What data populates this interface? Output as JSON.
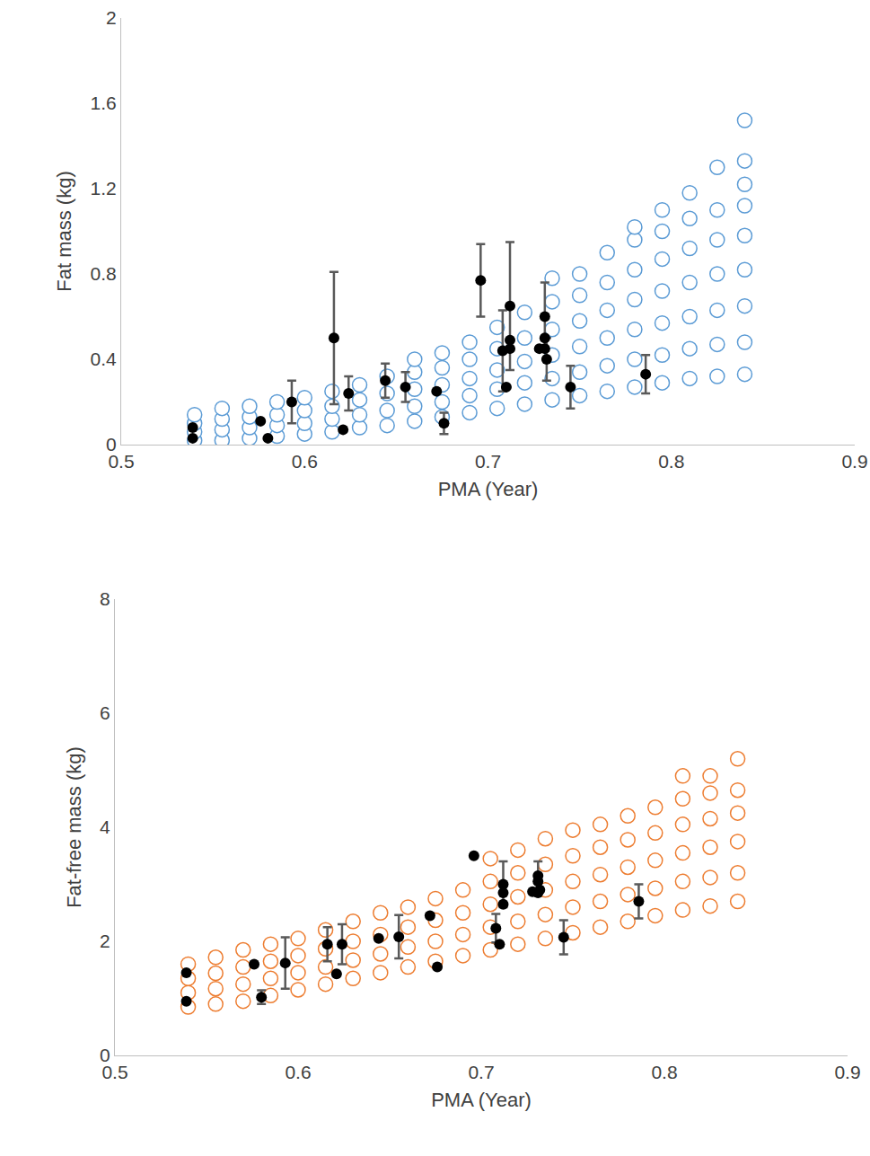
{
  "chart_data": [
    {
      "type": "scatter",
      "x_label": "PMA (Year)",
      "y_label": "Fat mass (kg)",
      "xlim": [
        0.5,
        0.9
      ],
      "xticks": [
        0.5,
        0.6,
        0.7,
        0.8,
        0.9
      ],
      "ylim": [
        0,
        2
      ],
      "yticks": [
        0,
        0.4,
        0.8,
        1.2,
        1.6,
        2
      ],
      "grid": false,
      "series": [
        {
          "color": "#5b9bd5",
          "marker": "open_circle",
          "x": [
            0.54,
            0.54,
            0.54,
            0.54,
            0.555,
            0.555,
            0.555,
            0.555,
            0.57,
            0.57,
            0.57,
            0.57,
            0.585,
            0.585,
            0.585,
            0.585,
            0.6,
            0.6,
            0.6,
            0.6,
            0.615,
            0.615,
            0.615,
            0.615,
            0.63,
            0.63,
            0.63,
            0.63,
            0.645,
            0.645,
            0.645,
            0.645,
            0.66,
            0.66,
            0.66,
            0.66,
            0.66,
            0.675,
            0.675,
            0.675,
            0.675,
            0.675,
            0.69,
            0.69,
            0.69,
            0.69,
            0.69,
            0.705,
            0.705,
            0.705,
            0.705,
            0.705,
            0.72,
            0.72,
            0.72,
            0.72,
            0.72,
            0.735,
            0.735,
            0.735,
            0.735,
            0.735,
            0.735,
            0.75,
            0.75,
            0.75,
            0.75,
            0.75,
            0.75,
            0.765,
            0.765,
            0.765,
            0.765,
            0.765,
            0.765,
            0.78,
            0.78,
            0.78,
            0.78,
            0.78,
            0.78,
            0.78,
            0.795,
            0.795,
            0.795,
            0.795,
            0.795,
            0.795,
            0.795,
            0.81,
            0.81,
            0.81,
            0.81,
            0.81,
            0.81,
            0.81,
            0.825,
            0.825,
            0.825,
            0.825,
            0.825,
            0.825,
            0.825,
            0.84,
            0.84,
            0.84,
            0.84,
            0.84,
            0.84,
            0.84,
            0.84,
            0.84
          ],
          "values": [
            0.02,
            0.06,
            0.1,
            0.14,
            0.02,
            0.07,
            0.12,
            0.17,
            0.03,
            0.08,
            0.13,
            0.18,
            0.04,
            0.09,
            0.14,
            0.2,
            0.05,
            0.1,
            0.16,
            0.22,
            0.06,
            0.12,
            0.18,
            0.25,
            0.08,
            0.14,
            0.21,
            0.28,
            0.09,
            0.16,
            0.24,
            0.32,
            0.11,
            0.18,
            0.26,
            0.34,
            0.4,
            0.13,
            0.2,
            0.28,
            0.36,
            0.43,
            0.15,
            0.23,
            0.31,
            0.4,
            0.48,
            0.17,
            0.26,
            0.35,
            0.45,
            0.55,
            0.19,
            0.29,
            0.39,
            0.5,
            0.62,
            0.21,
            0.31,
            0.42,
            0.54,
            0.67,
            0.78,
            0.23,
            0.34,
            0.46,
            0.58,
            0.7,
            0.8,
            0.25,
            0.37,
            0.5,
            0.63,
            0.76,
            0.9,
            0.27,
            0.4,
            0.54,
            0.68,
            0.82,
            0.96,
            1.02,
            0.29,
            0.42,
            0.57,
            0.72,
            0.87,
            1.0,
            1.1,
            0.31,
            0.45,
            0.6,
            0.76,
            0.92,
            1.06,
            1.18,
            0.32,
            0.47,
            0.63,
            0.8,
            0.96,
            1.1,
            1.3,
            0.33,
            0.48,
            0.65,
            0.82,
            0.98,
            1.12,
            1.22,
            1.33,
            1.52
          ]
        },
        {
          "color": "#000000",
          "marker": "circle",
          "x": [
            0.539,
            0.539,
            0.576,
            0.58,
            0.593,
            0.616,
            0.621,
            0.624,
            0.644,
            0.655,
            0.672,
            0.676,
            0.696,
            0.708,
            0.71,
            0.712,
            0.712,
            0.712,
            0.728,
            0.731,
            0.731,
            0.731,
            0.732,
            0.745,
            0.786
          ],
          "values": [
            0.08,
            0.03,
            0.11,
            0.03,
            0.2,
            0.5,
            0.07,
            0.24,
            0.3,
            0.27,
            0.25,
            0.1,
            0.77,
            0.44,
            0.27,
            0.65,
            0.49,
            0.45,
            0.45,
            0.6,
            0.5,
            0.45,
            0.4,
            0.27,
            0.33
          ],
          "error": [
            null,
            null,
            null,
            null,
            0.1,
            0.31,
            null,
            0.08,
            0.08,
            0.07,
            null,
            0.05,
            0.17,
            0.19,
            null,
            0.3,
            null,
            null,
            null,
            0.16,
            null,
            null,
            0.1,
            0.1,
            0.09
          ]
        }
      ]
    },
    {
      "type": "scatter",
      "x_label": "PMA (Year)",
      "y_label": "Fat-free mass (kg)",
      "xlim": [
        0.5,
        0.9
      ],
      "xticks": [
        0.5,
        0.6,
        0.7,
        0.8,
        0.9
      ],
      "ylim": [
        0,
        8
      ],
      "yticks": [
        0,
        2,
        4,
        6,
        8
      ],
      "grid": false,
      "series": [
        {
          "color": "#ed7d31",
          "marker": "open_circle",
          "x": [
            0.54,
            0.54,
            0.54,
            0.54,
            0.555,
            0.555,
            0.555,
            0.555,
            0.57,
            0.57,
            0.57,
            0.57,
            0.585,
            0.585,
            0.585,
            0.585,
            0.6,
            0.6,
            0.6,
            0.6,
            0.615,
            0.615,
            0.615,
            0.615,
            0.63,
            0.63,
            0.63,
            0.63,
            0.645,
            0.645,
            0.645,
            0.645,
            0.66,
            0.66,
            0.66,
            0.66,
            0.675,
            0.675,
            0.675,
            0.675,
            0.69,
            0.69,
            0.69,
            0.69,
            0.705,
            0.705,
            0.705,
            0.705,
            0.705,
            0.72,
            0.72,
            0.72,
            0.72,
            0.72,
            0.735,
            0.735,
            0.735,
            0.735,
            0.735,
            0.75,
            0.75,
            0.75,
            0.75,
            0.75,
            0.765,
            0.765,
            0.765,
            0.765,
            0.765,
            0.78,
            0.78,
            0.78,
            0.78,
            0.78,
            0.795,
            0.795,
            0.795,
            0.795,
            0.795,
            0.81,
            0.81,
            0.81,
            0.81,
            0.81,
            0.81,
            0.825,
            0.825,
            0.825,
            0.825,
            0.825,
            0.825,
            0.84,
            0.84,
            0.84,
            0.84,
            0.84,
            0.84
          ],
          "values": [
            0.85,
            1.1,
            1.35,
            1.6,
            0.9,
            1.17,
            1.44,
            1.72,
            0.95,
            1.25,
            1.55,
            1.85,
            1.05,
            1.35,
            1.65,
            1.95,
            1.15,
            1.45,
            1.75,
            2.05,
            1.25,
            1.55,
            1.87,
            2.2,
            1.35,
            1.67,
            2.0,
            2.35,
            1.45,
            1.78,
            2.12,
            2.5,
            1.55,
            1.9,
            2.25,
            2.6,
            1.65,
            2.0,
            2.37,
            2.75,
            1.75,
            2.12,
            2.5,
            2.9,
            1.85,
            2.25,
            2.65,
            3.05,
            3.45,
            1.95,
            2.35,
            2.78,
            3.2,
            3.6,
            2.05,
            2.47,
            2.9,
            3.35,
            3.8,
            2.15,
            2.6,
            3.05,
            3.5,
            3.95,
            2.25,
            2.7,
            3.17,
            3.65,
            4.05,
            2.35,
            2.82,
            3.3,
            3.78,
            4.2,
            2.45,
            2.93,
            3.42,
            3.9,
            4.35,
            2.55,
            3.05,
            3.55,
            4.05,
            4.5,
            4.9,
            2.62,
            3.12,
            3.65,
            4.15,
            4.6,
            4.9,
            2.7,
            3.2,
            3.75,
            4.25,
            4.65,
            5.2
          ]
        },
        {
          "color": "#000000",
          "marker": "circle",
          "x": [
            0.539,
            0.539,
            0.576,
            0.58,
            0.593,
            0.616,
            0.621,
            0.624,
            0.644,
            0.655,
            0.672,
            0.676,
            0.696,
            0.708,
            0.71,
            0.712,
            0.712,
            0.712,
            0.728,
            0.731,
            0.731,
            0.731,
            0.732,
            0.745,
            0.786
          ],
          "values": [
            1.45,
            0.95,
            1.6,
            1.02,
            1.62,
            1.95,
            1.43,
            1.95,
            2.05,
            2.08,
            2.45,
            1.55,
            3.5,
            2.23,
            1.95,
            3.0,
            2.85,
            2.65,
            2.87,
            3.15,
            3.05,
            2.85,
            2.9,
            2.07,
            2.7
          ],
          "error": [
            null,
            null,
            null,
            0.12,
            0.45,
            0.3,
            null,
            0.35,
            null,
            0.38,
            null,
            null,
            null,
            0.25,
            null,
            0.4,
            null,
            null,
            null,
            0.25,
            null,
            null,
            null,
            0.3,
            0.3
          ]
        }
      ]
    }
  ]
}
